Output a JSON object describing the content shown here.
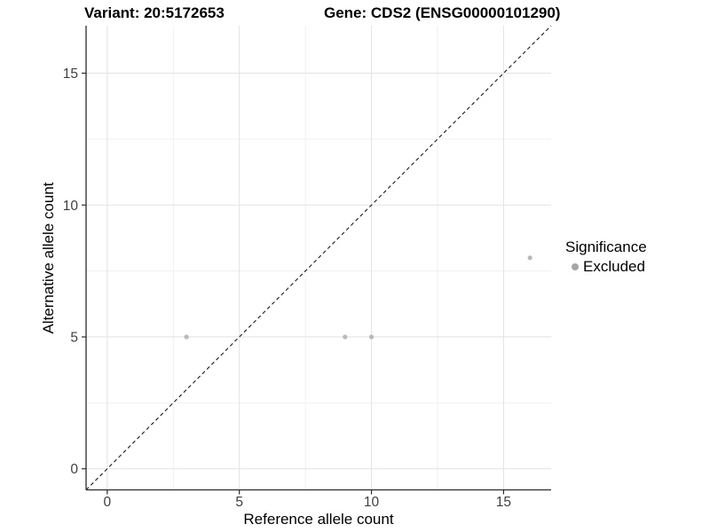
{
  "chart_data": {
    "type": "scatter",
    "title_left": "Variant: 20:5172653",
    "title_right": "Gene: CDS2 (ENSG00000101290)",
    "xlabel": "Reference allele count",
    "ylabel": "Alternative allele count",
    "xlim": [
      -0.8,
      16.8
    ],
    "ylim": [
      -0.8,
      16.8
    ],
    "x_ticks": [
      0,
      5,
      10,
      15
    ],
    "x_minor_ticks": [
      2.5,
      7.5,
      12.5
    ],
    "y_ticks": [
      0,
      5,
      10,
      15
    ],
    "y_minor_ticks": [
      2.5,
      7.5,
      12.5
    ],
    "grid": "major+minor",
    "identity_line": {
      "style": "dashed",
      "x1": -0.8,
      "y1": -0.8,
      "x2": 16.8,
      "y2": 16.8
    },
    "series": [
      {
        "name": "Excluded",
        "color": "#b9b9b9",
        "points": [
          [
            3,
            5
          ],
          [
            9,
            5
          ],
          [
            10,
            5
          ],
          [
            16,
            8
          ]
        ]
      }
    ],
    "legend": {
      "title": "Significance",
      "position": "right",
      "entries": [
        {
          "label": "Excluded",
          "color": "#a6a6a6"
        }
      ]
    }
  },
  "colors": {
    "background": "#ffffff",
    "grid_major": "#e4e4e4",
    "grid_minor": "#efefef",
    "axis_line": "#2b2b2b",
    "tick_label": "#404040",
    "identity_line": "#1a1a1a"
  }
}
